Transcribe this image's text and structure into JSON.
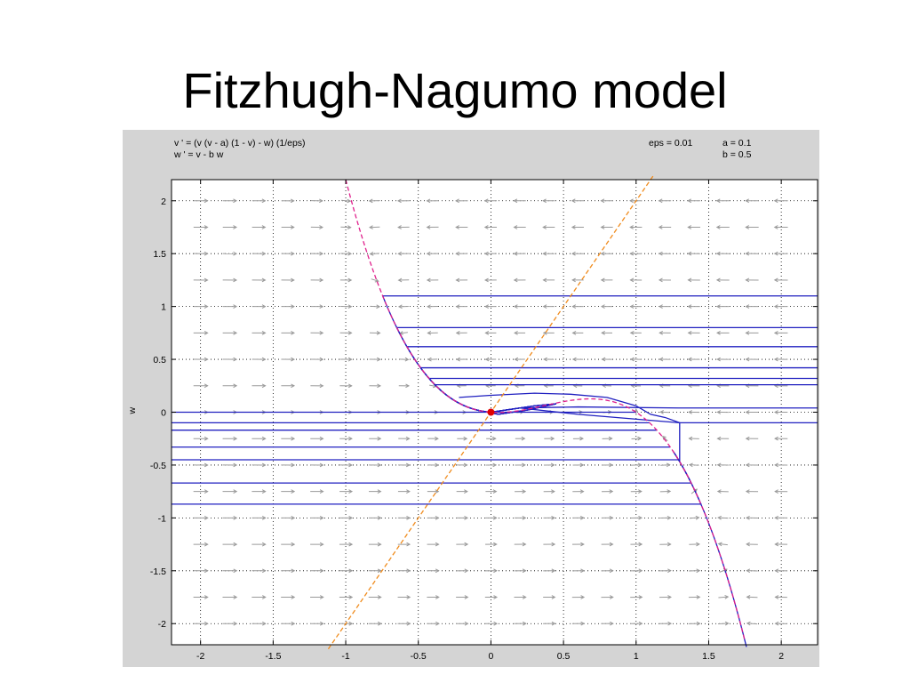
{
  "slide": {
    "title": "Fitzhugh-Nagumo model"
  },
  "equations": {
    "v_dot": "v ' = (v (v - a) (1 - v) - w) (1/eps)",
    "w_dot": "w ' = v - b w"
  },
  "parameters": {
    "eps": "eps = 0.01",
    "a": "a = 0.1",
    "b": "b = 0.5"
  },
  "colors": {
    "figure_bg": "#d4d4d4",
    "axes_bg": "#ffffff",
    "trajectory": "#2020c0",
    "v_nullcline": "#e0208c",
    "w_nullcline": "#f08c1e",
    "direction_field": "#9a9a9a",
    "equilibrium": "#e00000"
  },
  "chart_data": {
    "type": "line",
    "title": "",
    "xlabel": "",
    "ylabel": "w",
    "xlim": [
      -2.2,
      2.25
    ],
    "ylim": [
      -2.2,
      2.2
    ],
    "xticks": [
      -2,
      -1.5,
      -1,
      -0.5,
      0,
      0.5,
      1,
      1.5,
      2
    ],
    "xtick_labels": [
      "-2",
      "-1.5",
      "-1",
      "-0.5",
      "0",
      "0.5",
      "1",
      "1.5",
      "2"
    ],
    "yticks": [
      2,
      1.5,
      1,
      0.5,
      0,
      -0.5,
      -1,
      -1.5,
      -2
    ],
    "ytick_labels": [
      "2",
      "1.5",
      "1",
      "0.5",
      "0",
      "-0.5",
      "-1",
      "-1.5",
      "-2"
    ],
    "grid": true,
    "parameters": {
      "eps": 0.01,
      "a": 0.1,
      "b": 0.5
    },
    "equilibrium": {
      "v": 0,
      "w": 0
    },
    "series": [
      {
        "kind": "v-nullcline",
        "formula": "w = v (v - a) (1 - v)",
        "v_range": [
          -1.02,
          1.77
        ]
      },
      {
        "kind": "w-nullcline",
        "formula": "w = v / b",
        "v_range": [
          -1.12,
          1.12
        ]
      },
      {
        "kind": "trajectories",
        "start_v": 2.25,
        "start_w": [
          1.1,
          0.8,
          0.62,
          0.42,
          0.32,
          0.26,
          0.04,
          -0.1
        ],
        "limit_v": 1.96
      },
      {
        "kind": "trajectories",
        "start_v": -2.2,
        "start_w": [
          0.0,
          -0.1,
          -0.17,
          -0.33,
          -0.45,
          -0.67,
          -0.87
        ],
        "limit_v": 2.25
      }
    ]
  }
}
